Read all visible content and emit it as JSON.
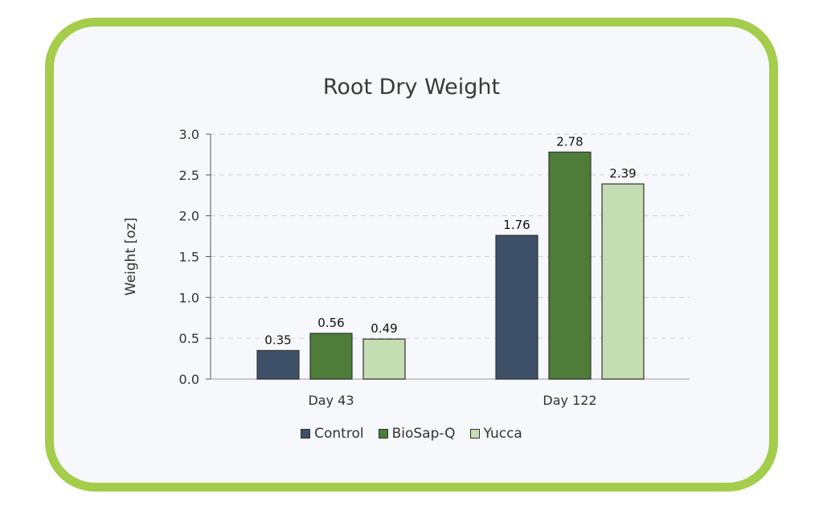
{
  "chart_data": {
    "type": "bar",
    "title": "Root Dry Weight",
    "xlabel": "",
    "ylabel": "Weight [oz]",
    "categories": [
      "Day 43",
      "Day 122"
    ],
    "series": [
      {
        "name": "Control",
        "values": [
          0.35,
          1.76
        ],
        "color": "#3e5068"
      },
      {
        "name": "BioSap-Q",
        "values": [
          0.56,
          2.78
        ],
        "color": "#4d7d39"
      },
      {
        "name": "Yucca",
        "values": [
          0.49,
          2.39
        ],
        "color": "#c4ddb2"
      }
    ],
    "data_labels": [
      [
        "0.35",
        "1.76"
      ],
      [
        "0.56",
        "2.78"
      ],
      [
        "0.49",
        "2.39"
      ]
    ],
    "yticks": [
      "0.0",
      "0.5",
      "1.0",
      "1.5",
      "2.0",
      "2.5",
      "3.0"
    ],
    "ylim": [
      0,
      3.0
    ],
    "grid": "horizontal-dashed",
    "legend_position": "bottom"
  },
  "colors": {
    "frame": "#a3cd4b",
    "card_background": "#f7f8fb"
  }
}
